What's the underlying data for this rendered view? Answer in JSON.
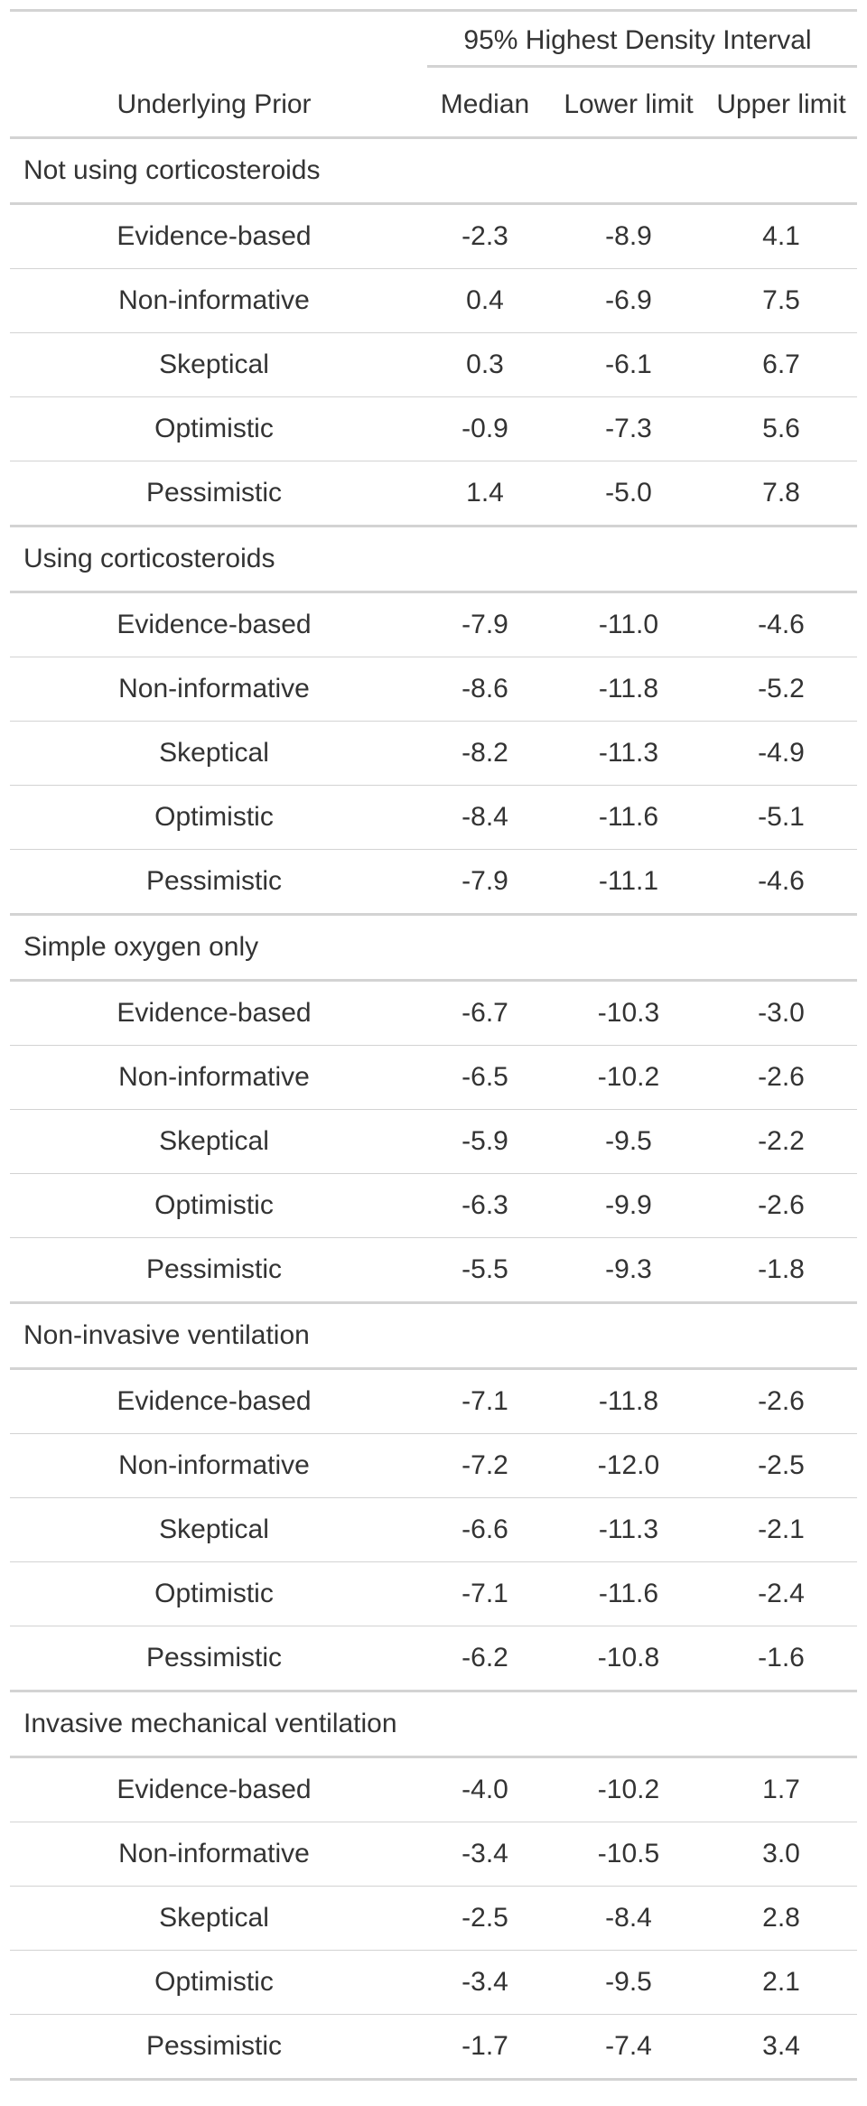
{
  "header": {
    "spanner": "95% Highest Density Interval",
    "columns": [
      "Underlying Prior",
      "Median",
      "Lower limit",
      "Upper limit"
    ]
  },
  "groups": [
    {
      "title": "Not using corticosteroids",
      "rows": [
        [
          "Evidence-based",
          "-2.3",
          "-8.9",
          "4.1"
        ],
        [
          "Non-informative",
          "0.4",
          "-6.9",
          "7.5"
        ],
        [
          "Skeptical",
          "0.3",
          "-6.1",
          "6.7"
        ],
        [
          "Optimistic",
          "-0.9",
          "-7.3",
          "5.6"
        ],
        [
          "Pessimistic",
          "1.4",
          "-5.0",
          "7.8"
        ]
      ]
    },
    {
      "title": "Using corticosteroids",
      "rows": [
        [
          "Evidence-based",
          "-7.9",
          "-11.0",
          "-4.6"
        ],
        [
          "Non-informative",
          "-8.6",
          "-11.8",
          "-5.2"
        ],
        [
          "Skeptical",
          "-8.2",
          "-11.3",
          "-4.9"
        ],
        [
          "Optimistic",
          "-8.4",
          "-11.6",
          "-5.1"
        ],
        [
          "Pessimistic",
          "-7.9",
          "-11.1",
          "-4.6"
        ]
      ]
    },
    {
      "title": "Simple oxygen only",
      "rows": [
        [
          "Evidence-based",
          "-6.7",
          "-10.3",
          "-3.0"
        ],
        [
          "Non-informative",
          "-6.5",
          "-10.2",
          "-2.6"
        ],
        [
          "Skeptical",
          "-5.9",
          "-9.5",
          "-2.2"
        ],
        [
          "Optimistic",
          "-6.3",
          "-9.9",
          "-2.6"
        ],
        [
          "Pessimistic",
          "-5.5",
          "-9.3",
          "-1.8"
        ]
      ]
    },
    {
      "title": "Non-invasive ventilation",
      "rows": [
        [
          "Evidence-based",
          "-7.1",
          "-11.8",
          "-2.6"
        ],
        [
          "Non-informative",
          "-7.2",
          "-12.0",
          "-2.5"
        ],
        [
          "Skeptical",
          "-6.6",
          "-11.3",
          "-2.1"
        ],
        [
          "Optimistic",
          "-7.1",
          "-11.6",
          "-2.4"
        ],
        [
          "Pessimistic",
          "-6.2",
          "-10.8",
          "-1.6"
        ]
      ]
    },
    {
      "title": "Invasive mechanical ventilation",
      "rows": [
        [
          "Evidence-based",
          "-4.0",
          "-10.2",
          "1.7"
        ],
        [
          "Non-informative",
          "-3.4",
          "-10.5",
          "3.0"
        ],
        [
          "Skeptical",
          "-2.5",
          "-8.4",
          "2.8"
        ],
        [
          "Optimistic",
          "-3.4",
          "-9.5",
          "2.1"
        ],
        [
          "Pessimistic",
          "-1.7",
          "-7.4",
          "3.4"
        ]
      ]
    }
  ]
}
